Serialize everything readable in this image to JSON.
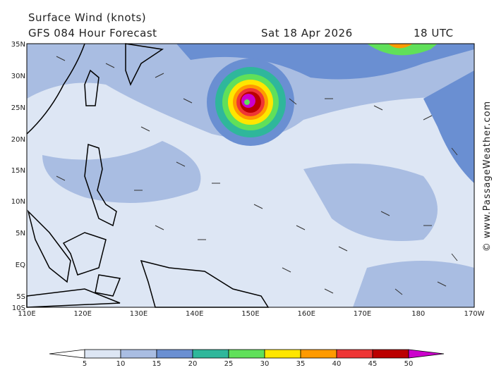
{
  "header": {
    "title": "Surface Wind (knots)",
    "subtitle": "GFS 084 Hour Forecast",
    "date": "Sat 18 Apr 2026",
    "time": "18 UTC"
  },
  "map": {
    "lat_labels": [
      "35N",
      "30N",
      "25N",
      "20N",
      "15N",
      "10N",
      "5N",
      "EQ",
      "5S",
      "10S"
    ],
    "lon_labels": [
      "110E",
      "120E",
      "130E",
      "140E",
      "150E",
      "160E",
      "170E",
      "180",
      "170W"
    ]
  },
  "colorbar": {
    "ticks": [
      5,
      10,
      15,
      20,
      25,
      30,
      35,
      40,
      45,
      50
    ],
    "colors": [
      "#ffffff",
      "#dde6f4",
      "#a9bde2",
      "#6a8fd2",
      "#2fb79b",
      "#60e05a",
      "#ffe600",
      "#ff9a00",
      "#ee3535",
      "#bb0000",
      "#cc00cc"
    ]
  },
  "watermark": "© www.PassageWeather.com"
}
